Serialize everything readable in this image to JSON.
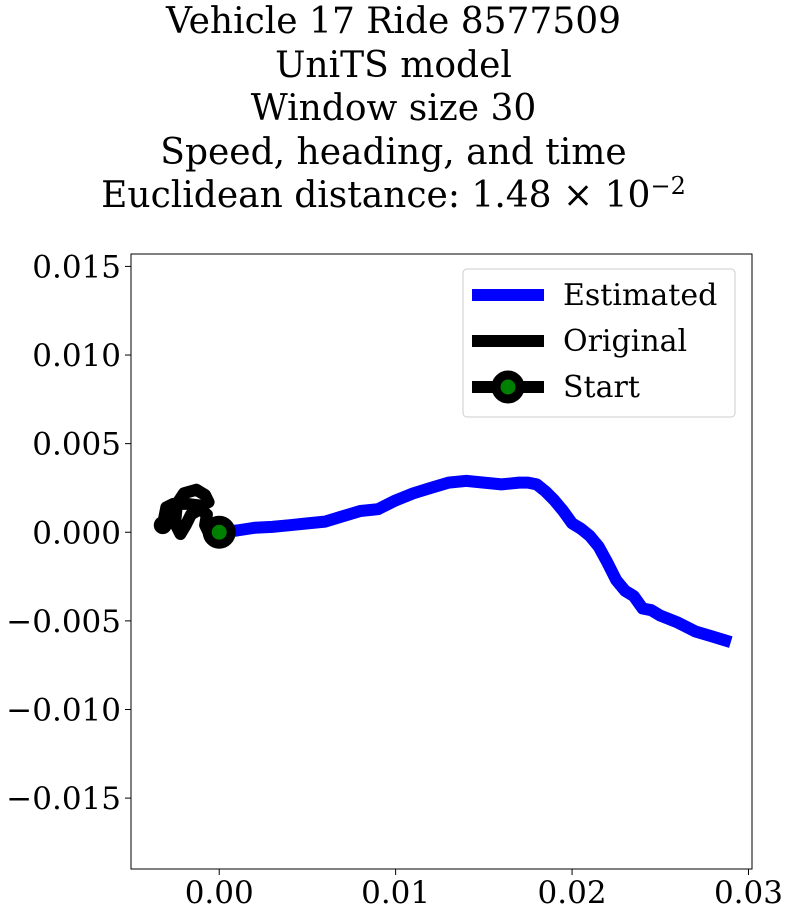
{
  "chart_data": {
    "type": "line",
    "title_lines": [
      "Vehicle 17 Ride 8577509",
      "UniTS model",
      "Window size 30",
      "Speed, heading, and time"
    ],
    "title_distance_prefix": "Euclidean distance: 1.48",
    "title_distance_times": "×",
    "title_distance_base": "10",
    "title_distance_exponent": "−2",
    "xlim": [
      -0.005,
      0.0302
    ],
    "ylim": [
      -0.019,
      0.0157
    ],
    "grid": false,
    "legend_position": "top-right",
    "x_ticks": [
      {
        "value": 0.0,
        "label": "0.00"
      },
      {
        "value": 0.01,
        "label": "0.01"
      },
      {
        "value": 0.02,
        "label": "0.02"
      },
      {
        "value": 0.03,
        "label": "0.03"
      }
    ],
    "y_ticks": [
      {
        "value": 0.015,
        "label": "0.015"
      },
      {
        "value": 0.01,
        "label": "0.010"
      },
      {
        "value": 0.005,
        "label": "0.005"
      },
      {
        "value": 0.0,
        "label": "0.000"
      },
      {
        "value": -0.005,
        "label": "−0.005"
      },
      {
        "value": -0.01,
        "label": "−0.010"
      },
      {
        "value": -0.015,
        "label": "−0.015"
      }
    ],
    "series": [
      {
        "name": "Estimated",
        "color": "#0000ff",
        "x": [
          0.0,
          0.001,
          0.002,
          0.003,
          0.004,
          0.005,
          0.006,
          0.007,
          0.008,
          0.009,
          0.01,
          0.011,
          0.012,
          0.013,
          0.014,
          0.015,
          0.016,
          0.017,
          0.0175,
          0.018,
          0.0185,
          0.019,
          0.0195,
          0.02,
          0.0205,
          0.021,
          0.0215,
          0.022,
          0.0225,
          0.023,
          0.0235,
          0.024,
          0.0245,
          0.025,
          0.026,
          0.027,
          0.028,
          0.029
        ],
        "y": [
          0.0,
          0.0001,
          0.00025,
          0.0003,
          0.0004,
          0.0005,
          0.0006,
          0.0009,
          0.0012,
          0.0013,
          0.0018,
          0.0022,
          0.0025,
          0.0028,
          0.0029,
          0.0028,
          0.0027,
          0.0028,
          0.0028,
          0.0027,
          0.0023,
          0.0018,
          0.0012,
          0.0005,
          0.0002,
          -0.0002,
          -0.0008,
          -0.0017,
          -0.0027,
          -0.0033,
          -0.0036,
          -0.0043,
          -0.0044,
          -0.0047,
          -0.0051,
          -0.0056,
          -0.0059,
          -0.0062
        ]
      },
      {
        "name": "Original",
        "color": "#000000",
        "x": [
          0.0,
          -0.0006,
          -0.0008,
          -0.0007,
          -0.0011,
          -0.0016,
          -0.0019,
          -0.0022,
          -0.0025,
          -0.0024,
          -0.002,
          -0.0013,
          -0.0008,
          -0.0006,
          -0.001,
          -0.0018,
          -0.0026,
          -0.003,
          -0.0032
        ],
        "y": [
          0.0,
          0.0,
          0.0004,
          0.001,
          0.0013,
          0.001,
          0.0004,
          -0.0001,
          0.0005,
          0.0016,
          0.0022,
          0.0024,
          0.0021,
          0.0017,
          0.0015,
          0.0016,
          0.0016,
          0.0014,
          0.0004
        ]
      }
    ],
    "start_marker": {
      "name": "Start",
      "x": 0.0,
      "y": 0.0,
      "color": "#000000",
      "fill": "#008000"
    },
    "legend": [
      "Estimated",
      "Original",
      "Start"
    ]
  }
}
